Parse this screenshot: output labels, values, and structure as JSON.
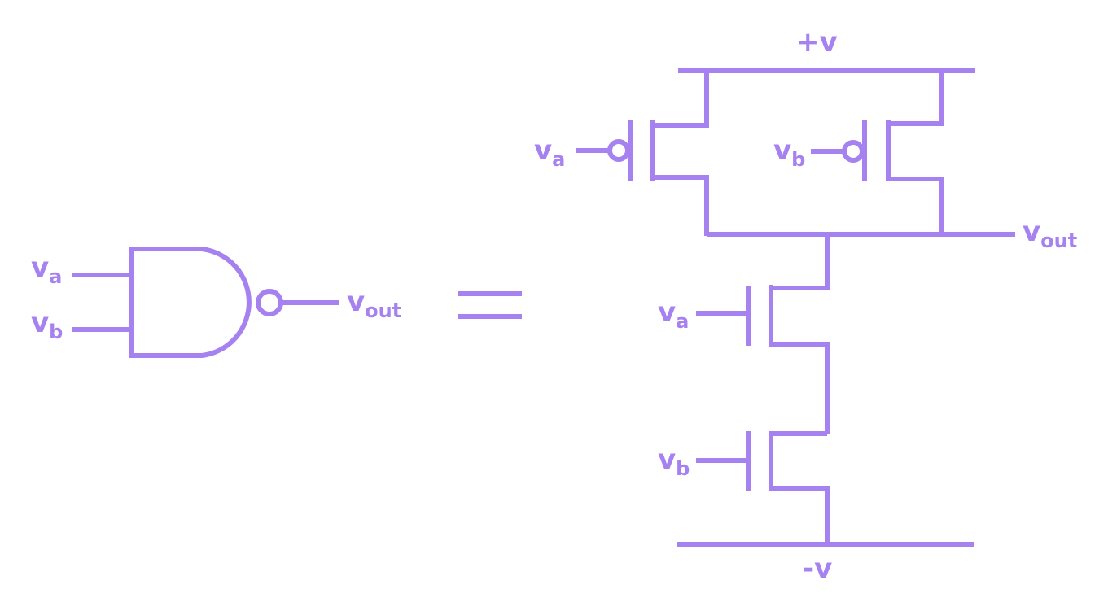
{
  "colors": {
    "wire": "#a681f0",
    "positive_supply": "#f0306c",
    "negative_supply": "#22a8e6"
  },
  "gate": {
    "input_a": {
      "main": "v",
      "sub": "a"
    },
    "input_b": {
      "main": "v",
      "sub": "b"
    },
    "output": {
      "main": "v",
      "sub": "out"
    }
  },
  "equals_sign": "=",
  "circuit": {
    "positive_rail": "+v",
    "negative_rail": "-v",
    "pmos_a_input": {
      "main": "v",
      "sub": "a"
    },
    "pmos_b_input": {
      "main": "v",
      "sub": "b"
    },
    "output": {
      "main": "v",
      "sub": "out"
    },
    "nmos_a_input": {
      "main": "v",
      "sub": "a"
    },
    "nmos_b_input": {
      "main": "v",
      "sub": "b"
    }
  }
}
